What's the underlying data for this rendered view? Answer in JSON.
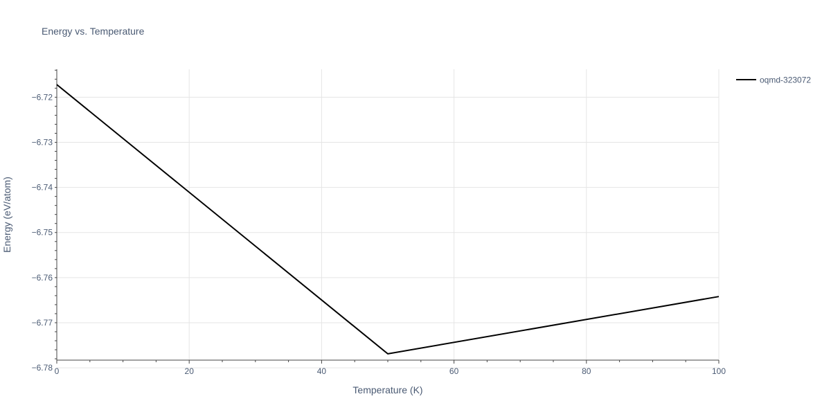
{
  "colors": {
    "background": "#ffffff",
    "grid": "#e5e5e5",
    "axis_line": "#444444",
    "text": "#4a5a73",
    "series": "#000000"
  },
  "chart_data": {
    "type": "line",
    "title": "Energy vs. Temperature",
    "xlabel": "Temperature (K)",
    "ylabel": "Energy (eV/atom)",
    "xlim": [
      0,
      100
    ],
    "ylim": [
      -6.7783,
      -6.7138
    ],
    "grid": true,
    "legend_position": "top-right",
    "x_ticks": [
      0,
      20,
      40,
      60,
      80,
      100
    ],
    "x_tick_labels": [
      "0",
      "20",
      "40",
      "60",
      "80",
      "100"
    ],
    "y_ticks": [
      -6.72,
      -6.73,
      -6.74,
      -6.75,
      -6.76,
      -6.77,
      -6.78
    ],
    "y_tick_labels": [
      "−6.72",
      "−6.73",
      "−6.74",
      "−6.75",
      "−6.76",
      "−6.77",
      "−6.78"
    ],
    "series": [
      {
        "name": "oqmd-323072",
        "color": "#000000",
        "x": [
          0,
          50,
          100
        ],
        "y": [
          -6.7172,
          -6.7769,
          -6.7642
        ]
      }
    ]
  }
}
